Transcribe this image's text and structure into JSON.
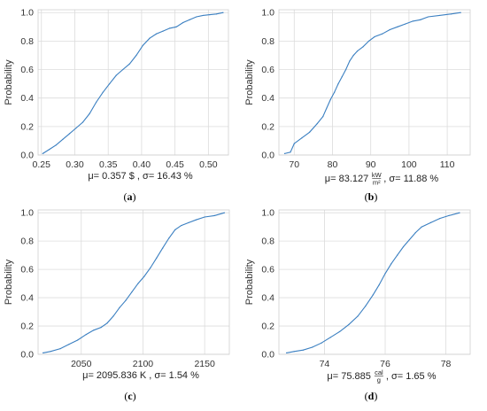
{
  "chart_data": [
    {
      "type": "line",
      "ylabel": "Probability",
      "xlim": [
        0.245,
        0.53
      ],
      "ylim": [
        0,
        1.02
      ],
      "xticks": [
        "0.25",
        "0.30",
        "0.35",
        "0.40",
        "0.45",
        "0.50"
      ],
      "xtick_values": [
        0.25,
        0.3,
        0.35,
        0.4,
        0.45,
        0.5
      ],
      "yticks": [
        "0.0",
        "0.2",
        "0.4",
        "0.6",
        "0.8",
        "1.0"
      ],
      "ytick_values": [
        0.0,
        0.2,
        0.4,
        0.6,
        0.8,
        1.0
      ],
      "grid": true,
      "stat_label": {
        "mu": "μ= 0.357 $",
        "sigma": "σ= 16.43 %",
        "unit_num": "",
        "unit_den": ""
      },
      "caption_open": "(",
      "caption_letter": "a",
      "caption_close": ")",
      "series": [
        {
          "color": "#3a7fc1",
          "x": [
            0.252,
            0.262,
            0.272,
            0.282,
            0.292,
            0.302,
            0.312,
            0.322,
            0.332,
            0.342,
            0.352,
            0.362,
            0.372,
            0.382,
            0.392,
            0.402,
            0.412,
            0.422,
            0.432,
            0.442,
            0.452,
            0.462,
            0.472,
            0.482,
            0.492,
            0.502,
            0.512,
            0.522
          ],
          "y": [
            0.01,
            0.04,
            0.07,
            0.11,
            0.15,
            0.19,
            0.23,
            0.29,
            0.37,
            0.44,
            0.5,
            0.56,
            0.6,
            0.64,
            0.7,
            0.77,
            0.82,
            0.85,
            0.87,
            0.89,
            0.9,
            0.93,
            0.95,
            0.97,
            0.98,
            0.985,
            0.99,
            1.0
          ]
        }
      ]
    },
    {
      "type": "line",
      "ylabel": "Probability",
      "xlim": [
        66,
        116
      ],
      "ylim": [
        0,
        1.02
      ],
      "xticks": [
        "70",
        "80",
        "90",
        "100",
        "110"
      ],
      "xtick_values": [
        70,
        80,
        90,
        100,
        110
      ],
      "yticks": [
        "0.0",
        "0.2",
        "0.4",
        "0.6",
        "0.8",
        "1.0"
      ],
      "ytick_values": [
        0.0,
        0.2,
        0.4,
        0.6,
        0.8,
        1.0
      ],
      "grid": true,
      "stat_label": {
        "mu": "μ= 83.127",
        "sigma": ", σ= 11.88 %",
        "unit_num": "kW",
        "unit_den": "m²"
      },
      "caption_open": "(",
      "caption_letter": "b",
      "caption_close": ")",
      "series": [
        {
          "color": "#3a7fc1",
          "x": [
            67.5,
            69,
            70,
            72,
            74,
            76,
            77.5,
            78.5,
            79.5,
            80.5,
            81.5,
            82.5,
            83.5,
            84.5,
            85.5,
            86.5,
            88,
            89.5,
            91,
            93,
            95,
            97,
            99,
            101,
            103,
            105,
            108,
            111,
            113.5
          ],
          "y": [
            0.01,
            0.02,
            0.08,
            0.12,
            0.16,
            0.22,
            0.27,
            0.33,
            0.39,
            0.44,
            0.5,
            0.55,
            0.6,
            0.66,
            0.7,
            0.73,
            0.76,
            0.8,
            0.83,
            0.85,
            0.88,
            0.9,
            0.92,
            0.94,
            0.95,
            0.97,
            0.98,
            0.99,
            1.0
          ]
        }
      ]
    },
    {
      "type": "line",
      "ylabel": "Probability",
      "xlim": [
        2015,
        2170
      ],
      "ylim": [
        0,
        1.02
      ],
      "xticks": [
        "2050",
        "2100",
        "2150"
      ],
      "xtick_values": [
        2050,
        2100,
        2150
      ],
      "yticks": [
        "0.0",
        "0.2",
        "0.4",
        "0.6",
        "0.8",
        "1.0"
      ],
      "ytick_values": [
        0.0,
        0.2,
        0.4,
        0.6,
        0.8,
        1.0
      ],
      "grid": true,
      "stat_label": {
        "mu": "μ= 2095.836 K",
        "sigma": "σ= 1.54 %",
        "unit_num": "",
        "unit_den": ""
      },
      "caption_open": "(",
      "caption_letter": "c",
      "caption_close": ")",
      "series": [
        {
          "color": "#3a7fc1",
          "x": [
            2019,
            2025,
            2033,
            2040,
            2047,
            2054,
            2060,
            2066,
            2071,
            2076,
            2081,
            2086,
            2091,
            2096,
            2101,
            2106,
            2111,
            2116,
            2121,
            2126,
            2131,
            2137,
            2143,
            2150,
            2158,
            2166
          ],
          "y": [
            0.01,
            0.02,
            0.04,
            0.07,
            0.1,
            0.14,
            0.17,
            0.19,
            0.22,
            0.27,
            0.33,
            0.38,
            0.44,
            0.5,
            0.55,
            0.61,
            0.68,
            0.75,
            0.82,
            0.88,
            0.91,
            0.93,
            0.95,
            0.97,
            0.98,
            1.0
          ]
        }
      ]
    },
    {
      "type": "line",
      "ylabel": "Probability",
      "xlim": [
        72.5,
        78.8
      ],
      "ylim": [
        0,
        1.02
      ],
      "xticks": [
        "74",
        "76",
        "78"
      ],
      "xtick_values": [
        74,
        76,
        78
      ],
      "yticks": [
        "0.0",
        "0.2",
        "0.4",
        "0.6",
        "0.8",
        "1.0"
      ],
      "ytick_values": [
        0.0,
        0.2,
        0.4,
        0.6,
        0.8,
        1.0
      ],
      "grid": true,
      "stat_label": {
        "mu": "μ= 75.885",
        "sigma": ", σ= 1.65 %",
        "unit_num": "cal",
        "unit_den": "g"
      },
      "caption_open": "(",
      "caption_letter": "d",
      "caption_close": ")",
      "series": [
        {
          "color": "#3a7fc1",
          "x": [
            72.75,
            73.0,
            73.3,
            73.6,
            73.9,
            74.2,
            74.5,
            74.8,
            75.1,
            75.35,
            75.6,
            75.8,
            76.0,
            76.2,
            76.4,
            76.6,
            76.8,
            77.0,
            77.2,
            77.5,
            77.8,
            78.1,
            78.45
          ],
          "y": [
            0.01,
            0.02,
            0.03,
            0.05,
            0.08,
            0.12,
            0.16,
            0.21,
            0.27,
            0.34,
            0.42,
            0.49,
            0.57,
            0.64,
            0.7,
            0.76,
            0.81,
            0.86,
            0.9,
            0.93,
            0.96,
            0.98,
            1.0
          ]
        }
      ]
    }
  ]
}
